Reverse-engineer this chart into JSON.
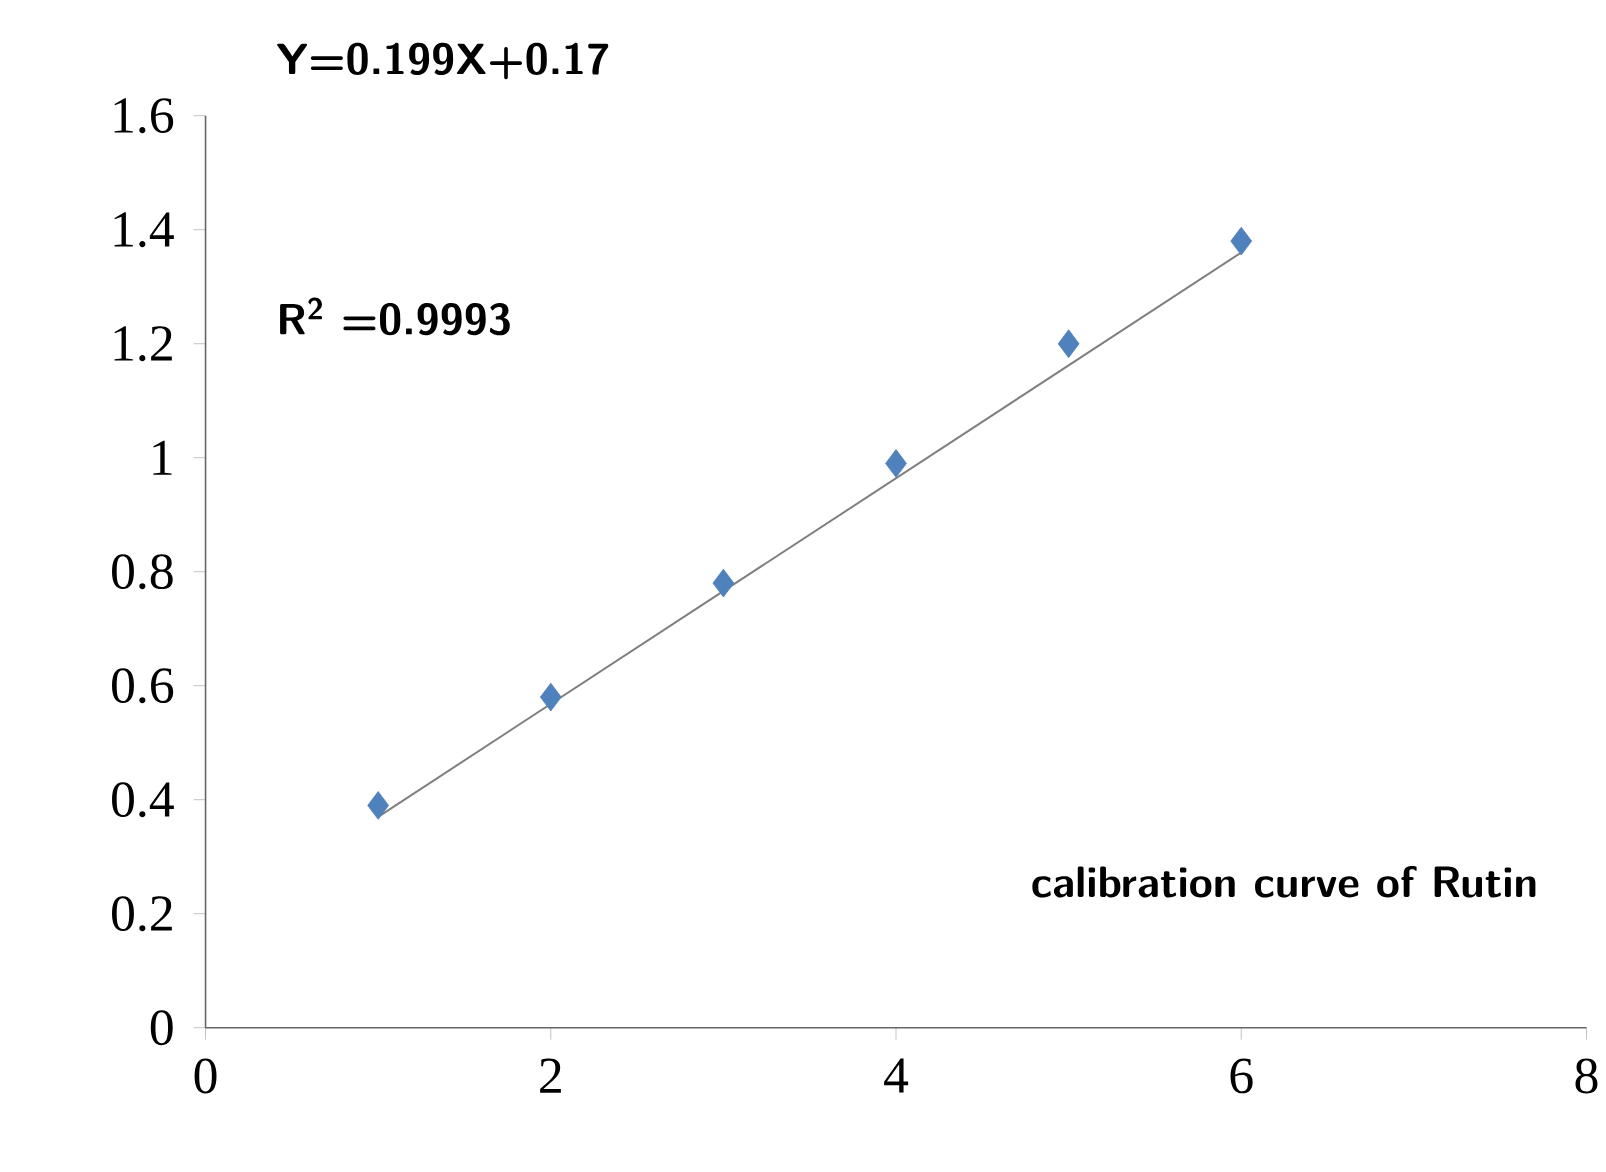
{
  "chart_data": {
    "type": "scatter",
    "series": [
      {
        "color": "#4f81bd",
        "marker": "diamond",
        "x": [
          1,
          2,
          3,
          4,
          5,
          6
        ],
        "values": [
          0.39,
          0.58,
          0.78,
          0.99,
          1.2,
          1.38
        ]
      },
      {
        "type": "line",
        "color": "#7f7f7f",
        "marker": "none",
        "line_style": "solid",
        "x": [
          1,
          6
        ],
        "values": [
          0.37,
          1.36
        ]
      }
    ],
    "xlim": [
      0,
      8
    ],
    "xticks": [
      0,
      2,
      4,
      6,
      8
    ],
    "ylim": [
      0,
      1.6
    ],
    "yticks": [
      0,
      0.2,
      0.4,
      0.6,
      0.8,
      1,
      1.2,
      1.4,
      1.6
    ],
    "grid": false,
    "annotations": [
      "Y=0.199X+0.17",
      "R$^{2}$ =0.9993",
      "calibration curve of Rutin"
    ]
  }
}
